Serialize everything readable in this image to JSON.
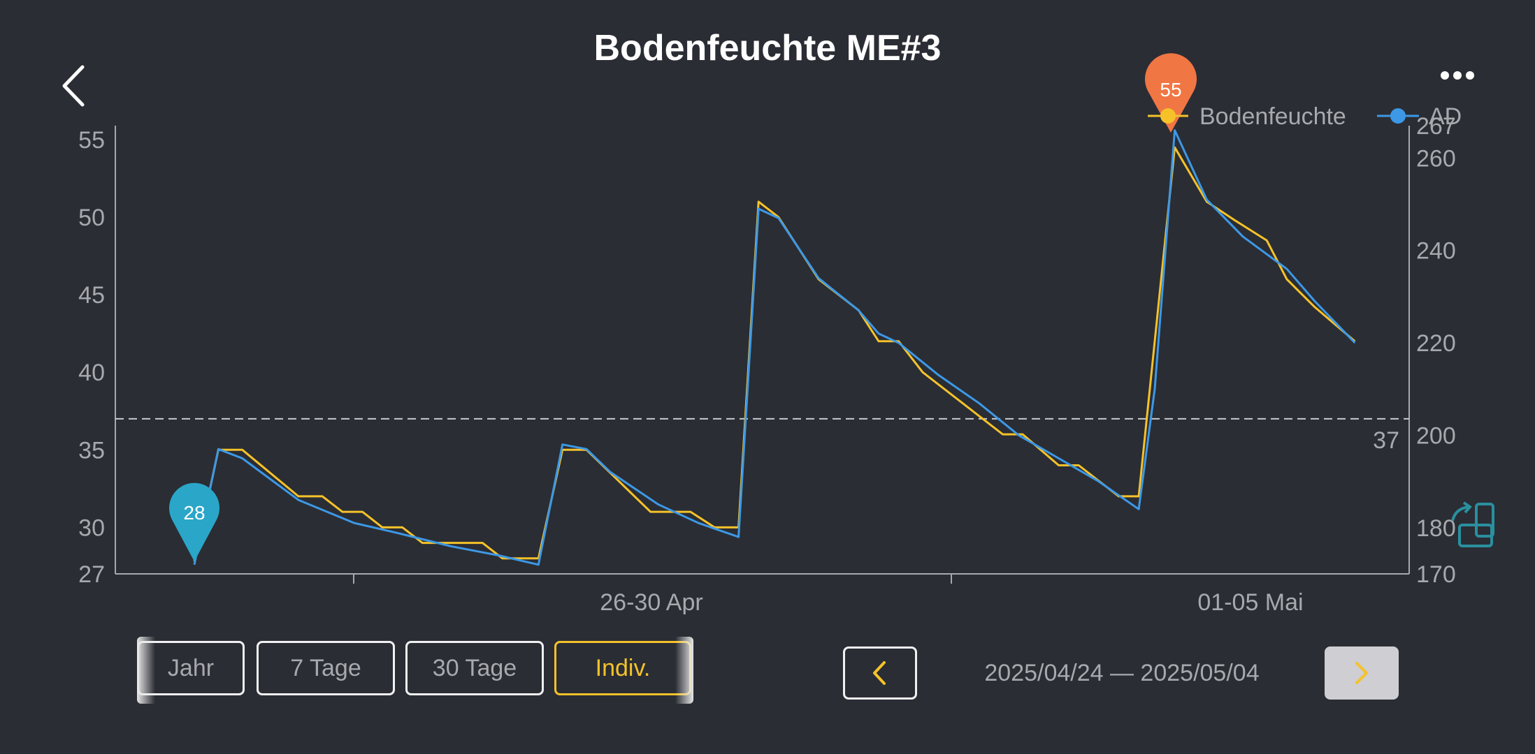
{
  "header": {
    "title": "Bodenfeuchte ME#3",
    "back_icon": "chevron-left-icon",
    "menu_icon": "more-horizontal-icon"
  },
  "colors": {
    "background": "#2a2d34",
    "bodenfeuchte": "#f5c22a",
    "ad": "#3d98e6",
    "max_marker": "#f07643",
    "min_marker": "#2aa6c8",
    "axis": "#a7a9ad",
    "rotate_icon": "#2a8f9e"
  },
  "chart_data": {
    "type": "line",
    "x_labels": [
      "26-30 Apr",
      "01-05 Mai"
    ],
    "y_left": {
      "ticks": [
        27,
        30,
        35,
        40,
        45,
        50,
        55
      ],
      "range": [
        27,
        55.9
      ]
    },
    "y_right": {
      "ticks": [
        170,
        180,
        200,
        220,
        240,
        260,
        267
      ],
      "range": [
        170,
        267
      ]
    },
    "reference_line": {
      "value": 37,
      "label": "37",
      "style": "dashed"
    },
    "max_marker": {
      "label": "55",
      "value": 55
    },
    "min_marker": {
      "label": "28",
      "value": 28
    },
    "legend": {
      "position": "top-right"
    },
    "series": [
      {
        "name": "Bodenfeuchte",
        "axis": "left",
        "points": [
          [
            0,
            27.8
          ],
          [
            0.3,
            35
          ],
          [
            0.6,
            35
          ],
          [
            1.3,
            32
          ],
          [
            1.6,
            32
          ],
          [
            1.85,
            31
          ],
          [
            2.1,
            31
          ],
          [
            2.35,
            30
          ],
          [
            2.6,
            30
          ],
          [
            2.85,
            29
          ],
          [
            3.6,
            29
          ],
          [
            3.85,
            28
          ],
          [
            4.3,
            28
          ],
          [
            4.6,
            35
          ],
          [
            4.9,
            35
          ],
          [
            5.7,
            31
          ],
          [
            6.2,
            31
          ],
          [
            6.5,
            30
          ],
          [
            6.8,
            30
          ],
          [
            7.05,
            51
          ],
          [
            7.3,
            50
          ],
          [
            7.8,
            46
          ],
          [
            8.3,
            44
          ],
          [
            8.55,
            42
          ],
          [
            8.8,
            42
          ],
          [
            9.1,
            40
          ],
          [
            9.6,
            38
          ],
          [
            10.1,
            36
          ],
          [
            10.35,
            36
          ],
          [
            10.8,
            34
          ],
          [
            11.05,
            34
          ],
          [
            11.55,
            32
          ],
          [
            11.8,
            32
          ],
          [
            12.0,
            42
          ],
          [
            12.25,
            54.5
          ],
          [
            12.65,
            51
          ],
          [
            13.0,
            49.8
          ],
          [
            13.4,
            48.5
          ],
          [
            13.65,
            46
          ],
          [
            14.0,
            44.2
          ],
          [
            14.5,
            42
          ]
        ]
      },
      {
        "name": "AD",
        "axis": "right",
        "points": [
          [
            0,
            172
          ],
          [
            0.3,
            197
          ],
          [
            0.6,
            195
          ],
          [
            1.3,
            186
          ],
          [
            2.0,
            181
          ],
          [
            2.5,
            179
          ],
          [
            3.2,
            176
          ],
          [
            3.8,
            174
          ],
          [
            4.3,
            172
          ],
          [
            4.6,
            198
          ],
          [
            4.9,
            197
          ],
          [
            5.2,
            192
          ],
          [
            5.8,
            185
          ],
          [
            6.3,
            181
          ],
          [
            6.8,
            178
          ],
          [
            7.05,
            249
          ],
          [
            7.3,
            247
          ],
          [
            7.8,
            234
          ],
          [
            8.3,
            227
          ],
          [
            8.55,
            222
          ],
          [
            8.8,
            220
          ],
          [
            9.3,
            213
          ],
          [
            9.8,
            207
          ],
          [
            10.3,
            200
          ],
          [
            10.8,
            195
          ],
          [
            11.3,
            190
          ],
          [
            11.8,
            184
          ],
          [
            12.0,
            210
          ],
          [
            12.25,
            266
          ],
          [
            12.65,
            251
          ],
          [
            13.1,
            243
          ],
          [
            13.65,
            236
          ],
          [
            14.0,
            229
          ],
          [
            14.5,
            220
          ]
        ]
      }
    ]
  },
  "controls": {
    "tabs": [
      {
        "label": "Jahr",
        "active": false
      },
      {
        "label": "7 Tage",
        "active": false
      },
      {
        "label": "30 Tage",
        "active": false
      },
      {
        "label": "Indiv.",
        "active": true
      }
    ],
    "date_range": "2025/04/24 — 2025/05/04",
    "prev_icon": "chevron-left-icon",
    "next_icon": "chevron-right-icon",
    "rotate_icon": "rotate-screen-icon"
  }
}
